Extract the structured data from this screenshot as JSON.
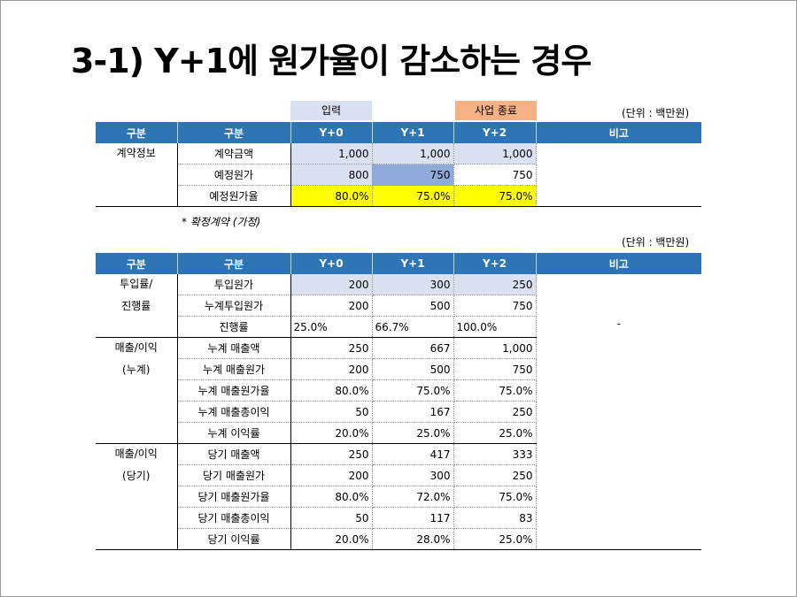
{
  "title": "3-1) Y+1에 원가율이 감소하는 경우",
  "legend": {
    "input_label": "입력",
    "end_label": "사업 종료",
    "input_color": "#d9e1f2",
    "end_color": "#f4b183"
  },
  "unit_label": "(단위 : 백만원)",
  "table1": {
    "headers": [
      "구분",
      "구분",
      "Y+0",
      "Y+1",
      "Y+2",
      "비고"
    ],
    "category": "계약정보",
    "rows": [
      {
        "label": "계약금액",
        "values": [
          "1,000",
          "1,000",
          "1,000"
        ]
      },
      {
        "label": "예정원가",
        "values": [
          "800",
          "750",
          "750"
        ]
      },
      {
        "label": "예정원가율",
        "values": [
          "80.0%",
          "75.0%",
          "75.0%"
        ]
      }
    ],
    "note": "* 확정계약 (가정)"
  },
  "table2": {
    "headers": [
      "구분",
      "구분",
      "Y+0",
      "Y+1",
      "Y+2",
      "비고"
    ],
    "remark": "-",
    "groups": [
      {
        "category_line1": "투입률/",
        "category_line2": "진행률",
        "rows": [
          {
            "label": "투입원가",
            "values": [
              "200",
              "300",
              "250"
            ]
          },
          {
            "label": "누계투입원가",
            "values": [
              "200",
              "500",
              "750"
            ]
          },
          {
            "label": "진행률",
            "values": [
              "25.0%",
              "66.7%",
              "100.0%"
            ]
          }
        ]
      },
      {
        "category_line1": "매출/이익",
        "category_line2": "(누계)",
        "rows": [
          {
            "label": "누계 매출액",
            "values": [
              "250",
              "667",
              "1,000"
            ]
          },
          {
            "label": "누계 매출원가",
            "values": [
              "200",
              "500",
              "750"
            ]
          },
          {
            "label": "누계 매출원가율",
            "values": [
              "80.0%",
              "75.0%",
              "75.0%"
            ]
          },
          {
            "label": "누계 매출총이익",
            "values": [
              "50",
              "167",
              "250"
            ]
          },
          {
            "label": "누계 이익률",
            "values": [
              "20.0%",
              "25.0%",
              "25.0%"
            ]
          }
        ]
      },
      {
        "category_line1": "매출/이익",
        "category_line2": "(당기)",
        "rows": [
          {
            "label": "당기 매출액",
            "values": [
              "250",
              "417",
              "333"
            ]
          },
          {
            "label": "당기 매출원가",
            "values": [
              "200",
              "300",
              "250"
            ]
          },
          {
            "label": "당기 매출원가율",
            "values": [
              "80.0%",
              "72.0%",
              "75.0%"
            ]
          },
          {
            "label": "당기 매출총이익",
            "values": [
              "50",
              "117",
              "83"
            ]
          },
          {
            "label": "당기 이익률",
            "values": [
              "20.0%",
              "28.0%",
              "25.0%"
            ]
          }
        ]
      }
    ]
  }
}
